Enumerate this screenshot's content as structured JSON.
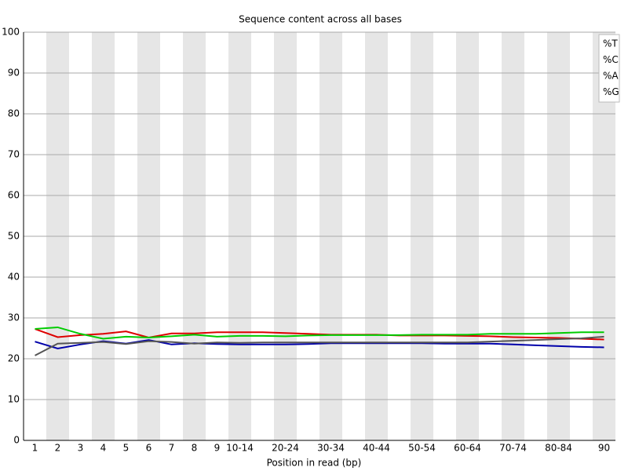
{
  "chart_data": {
    "type": "line",
    "title": "Sequence content across all bases",
    "x_label": "Position in read (bp)",
    "categories": [
      "1",
      "2",
      "3",
      "4",
      "5",
      "6",
      "7",
      "8",
      "9",
      "10-14",
      null,
      "20-24",
      null,
      "30-34",
      null,
      "40-44",
      null,
      "50-54",
      null,
      "60-64",
      null,
      "70-74",
      null,
      "80-84",
      null,
      "90"
    ],
    "series": [
      {
        "name": "%T",
        "color": "#dd0000",
        "values": [
          27.3,
          25.3,
          25.8,
          26.1,
          26.7,
          25.2,
          26.2,
          26.2,
          26.5,
          26.5,
          26.5,
          26.3,
          26.1,
          25.9,
          25.9,
          25.9,
          25.7,
          25.7,
          25.7,
          25.6,
          25.5,
          25.3,
          25.2,
          25.1,
          24.9,
          24.7
        ]
      },
      {
        "name": "%C",
        "color": "#0000aa",
        "values": [
          24.2,
          22.5,
          23.5,
          24.3,
          23.7,
          24.6,
          23.5,
          23.8,
          23.6,
          23.5,
          23.5,
          23.5,
          23.6,
          23.8,
          23.8,
          23.8,
          23.8,
          23.8,
          23.7,
          23.7,
          23.7,
          23.5,
          23.3,
          23.1,
          22.9,
          22.8
        ]
      },
      {
        "name": "%A",
        "color": "#00cc00",
        "values": [
          27.3,
          27.7,
          26.1,
          24.9,
          25.4,
          25.2,
          25.5,
          25.9,
          25.4,
          25.6,
          25.6,
          25.5,
          25.7,
          25.8,
          25.8,
          25.8,
          25.8,
          25.9,
          25.9,
          25.9,
          26.1,
          26.1,
          26.1,
          26.3,
          26.5,
          26.5
        ]
      },
      {
        "name": "%G",
        "color": "#555555",
        "values": [
          20.8,
          23.7,
          23.9,
          24.1,
          23.6,
          24.3,
          24.1,
          23.7,
          24.0,
          23.9,
          24.0,
          24.0,
          24.0,
          24.0,
          24.0,
          24.0,
          24.0,
          24.0,
          24.0,
          24.0,
          24.2,
          24.4,
          24.6,
          24.8,
          25.0,
          25.4
        ]
      }
    ],
    "ylim": [
      0,
      100
    ],
    "yticks": [
      0,
      10,
      20,
      30,
      40,
      50,
      60,
      70,
      80,
      90,
      100
    ],
    "grid": true,
    "legend": "top-right"
  }
}
